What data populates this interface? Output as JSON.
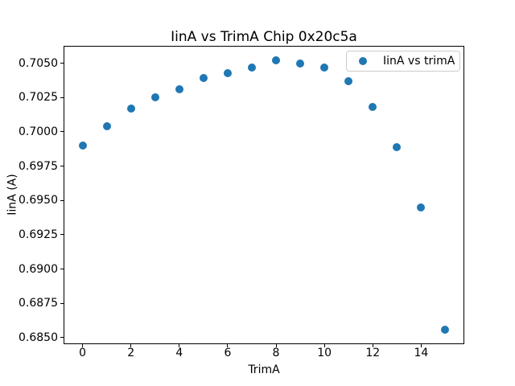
{
  "chart": {
    "title": "IinA vs TrimA Chip 0x20c5a",
    "xlabel": "TrimA",
    "ylabel": "IinA (A)",
    "legend_label": "IinA vs trimA"
  },
  "chart_data": {
    "type": "scatter",
    "title": "IinA vs TrimA Chip 0x20c5a",
    "xlabel": "TrimA",
    "ylabel": "IinA (A)",
    "legend": [
      "IinA vs trimA"
    ],
    "legend_position": "upper right",
    "marker_color": "#1f77b4",
    "grid": false,
    "x": [
      0,
      1,
      2,
      3,
      4,
      5,
      6,
      7,
      8,
      9,
      10,
      11,
      12,
      13,
      14,
      15
    ],
    "y": [
      0.699,
      0.7004,
      0.7017,
      0.7025,
      0.7031,
      0.7039,
      0.7043,
      0.7047,
      0.7052,
      0.705,
      0.7047,
      0.7037,
      0.7018,
      0.6989,
      0.6945,
      0.6856
    ],
    "xlim": [
      -0.75,
      15.75
    ],
    "ylim": [
      0.68458,
      0.70621
    ],
    "xticks": {
      "values": [
        0,
        2,
        4,
        6,
        8,
        10,
        12,
        14
      ],
      "labels": [
        "0",
        "2",
        "4",
        "6",
        "8",
        "10",
        "12",
        "14"
      ]
    },
    "yticks": {
      "values": [
        0.685,
        0.6875,
        0.69,
        0.6925,
        0.695,
        0.6975,
        0.7,
        0.7025,
        0.705
      ],
      "labels": [
        "0.6850",
        "0.6875",
        "0.6900",
        "0.6925",
        "0.6950",
        "0.6975",
        "0.7000",
        "0.7025",
        "0.7050"
      ]
    }
  }
}
